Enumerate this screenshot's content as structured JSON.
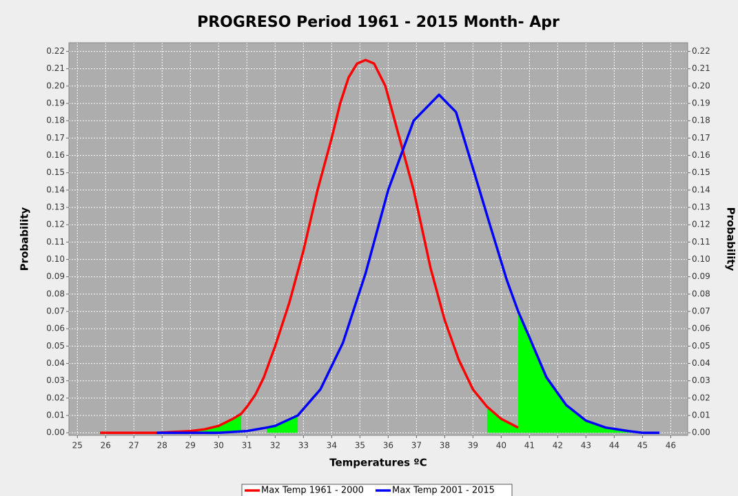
{
  "chart_data": {
    "type": "line",
    "title": "PROGRESO Period 1961 - 2015  Month- Apr",
    "xlabel": "Temperatures ºC",
    "ylabel": "Probability",
    "xlim": [
      24.7,
      46.6
    ],
    "ylim": [
      -0.0015,
      0.225
    ],
    "xticks": [
      25,
      26,
      27,
      28,
      29,
      30,
      31,
      32,
      33,
      34,
      35,
      36,
      37,
      38,
      39,
      40,
      41,
      42,
      43,
      44,
      45,
      46
    ],
    "yticks": [
      {
        "value": 0,
        "label": "0.00"
      },
      {
        "value": 0.01,
        "label": "0.01"
      },
      {
        "value": 0.02,
        "label": "0.02"
      },
      {
        "value": 0.03,
        "label": "0.03"
      },
      {
        "value": 0.04,
        "label": "0.04"
      },
      {
        "value": 0.05,
        "label": "0.05"
      },
      {
        "value": 0.06,
        "label": "0.06"
      },
      {
        "value": 0.07,
        "label": "0.07"
      },
      {
        "value": 0.08,
        "label": "0.08"
      },
      {
        "value": 0.09,
        "label": "0.09"
      },
      {
        "value": 0.1,
        "label": "0.10"
      },
      {
        "value": 0.11,
        "label": "0.11"
      },
      {
        "value": 0.12,
        "label": "0.12"
      },
      {
        "value": 0.13,
        "label": "0.13"
      },
      {
        "value": 0.14,
        "label": "0.14"
      },
      {
        "value": 0.15,
        "label": "0.15"
      },
      {
        "value": 0.16,
        "label": "0.16"
      },
      {
        "value": 0.17,
        "label": "0.17"
      },
      {
        "value": 0.18,
        "label": "0.18"
      },
      {
        "value": 0.19,
        "label": "0.19"
      },
      {
        "value": 0.2,
        "label": "0.20"
      },
      {
        "value": 0.21,
        "label": "0.21"
      },
      {
        "value": 0.22,
        "label": "0.22"
      }
    ],
    "grid": true,
    "legend": "bottom",
    "shade_color": "#00ff00",
    "series": [
      {
        "name": "Max Temp 1961 - 2000",
        "color": "#ff0000",
        "x": [
          25.8,
          27.8,
          29,
          29.5,
          30,
          30.5,
          30.8,
          31,
          31.3,
          31.6,
          32,
          32.5,
          33,
          33.5,
          34,
          34.3,
          34.6,
          34.9,
          35.2,
          35.5,
          35.9,
          36.4,
          36.9,
          37.5,
          38,
          38.5,
          39,
          39.5,
          40,
          40.6
        ],
        "values": [
          0,
          0,
          0.001,
          0.002,
          0.004,
          0.008,
          0.011,
          0.015,
          0.022,
          0.032,
          0.05,
          0.075,
          0.105,
          0.14,
          0.17,
          0.19,
          0.205,
          0.213,
          0.215,
          0.213,
          0.2,
          0.17,
          0.14,
          0.095,
          0.065,
          0.042,
          0.025,
          0.015,
          0.008,
          0.003
        ],
        "shade": [
          [
            25.8,
            30.8
          ],
          [
            39.5,
            40.6
          ]
        ]
      },
      {
        "name": "Max Temp 2001 - 2015",
        "color": "#0000ff",
        "x": [
          27.8,
          29,
          30,
          31,
          31.7,
          32,
          32.8,
          33.6,
          34.4,
          35.2,
          36,
          36.9,
          37.8,
          38.4,
          38.9,
          39.6,
          40.2,
          40.6,
          41,
          41.6,
          42.3,
          43,
          43.7,
          44.5,
          45,
          45.6
        ],
        "values": [
          0,
          0,
          0,
          0.001,
          0.003,
          0.004,
          0.01,
          0.025,
          0.052,
          0.092,
          0.14,
          0.18,
          0.195,
          0.185,
          0.158,
          0.12,
          0.088,
          0.07,
          0.055,
          0.032,
          0.016,
          0.007,
          0.003,
          0.001,
          0,
          0
        ],
        "shade": [
          [
            31.7,
            32.8
          ],
          [
            40.6,
            45.6
          ]
        ]
      }
    ]
  }
}
